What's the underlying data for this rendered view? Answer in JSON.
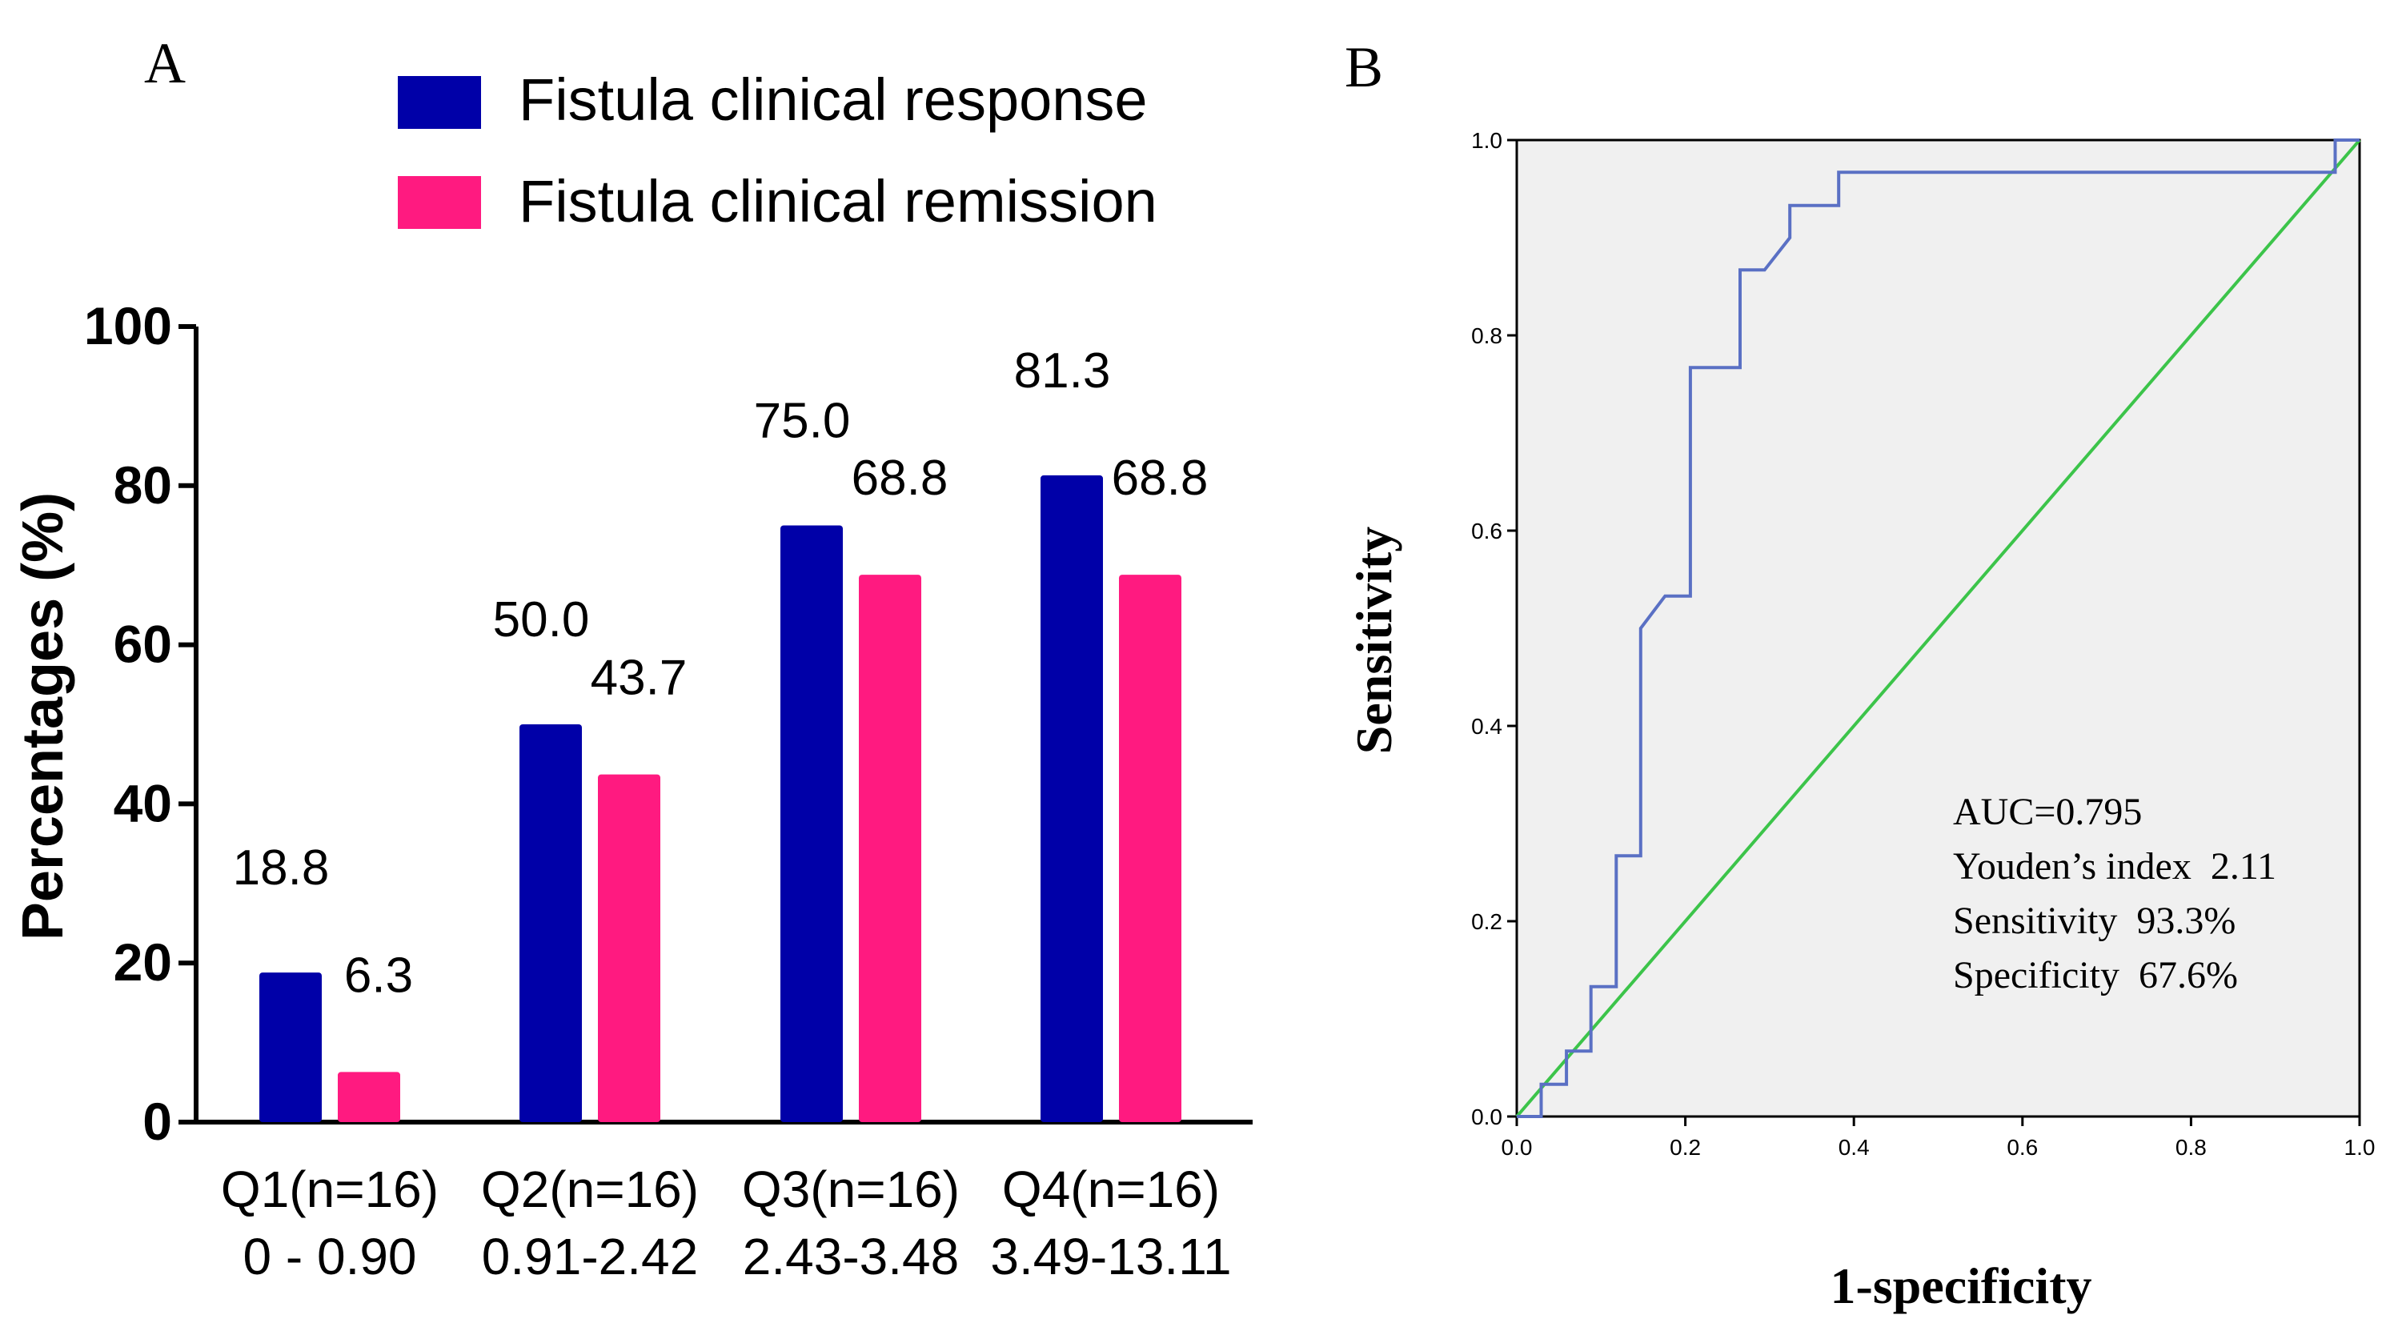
{
  "panel_a_label": "A",
  "panel_b_label": "B",
  "chart_data": [
    {
      "type": "bar",
      "panel": "A",
      "ylabel": "Percentages (%)",
      "xlabel": "",
      "ylim": [
        0,
        100
      ],
      "yticks": [
        0,
        20,
        40,
        60,
        80,
        100
      ],
      "categories": [
        "Q1(n=16)",
        "Q2(n=16)",
        "Q3(n=16)",
        "Q4(n=16)"
      ],
      "category_ranges": [
        "0 - 0.90",
        "0.91-2.42",
        "2.43-3.48",
        "3.49-13.11"
      ],
      "series": [
        {
          "name": "Fistula clinical response",
          "color": "#0000a8",
          "values": [
            18.8,
            50.0,
            75.0,
            81.3
          ],
          "labels": [
            "18.8",
            "50.0",
            "75.0",
            "81.3"
          ]
        },
        {
          "name": "Fistula clinical remission",
          "color": "#ff1a80",
          "values": [
            6.3,
            43.7,
            68.8,
            68.8
          ],
          "labels": [
            "6.3",
            "43.7",
            "68.8",
            "68.8"
          ]
        }
      ],
      "legend_position": "top"
    },
    {
      "type": "line",
      "panel": "B",
      "xlabel": "1-specificity",
      "ylabel": "Sensitivity",
      "xlim": [
        0,
        1
      ],
      "ylim": [
        0,
        1
      ],
      "xticks": [
        "0.0",
        "0.2",
        "0.4",
        "0.6",
        "0.8",
        "1.0"
      ],
      "yticks": [
        "0.0",
        "0.2",
        "0.4",
        "0.6",
        "0.8",
        "1.0"
      ],
      "grid": false,
      "series": [
        {
          "name": "ROC curve",
          "color": "#5a70c4",
          "x": [
            0.0,
            0.029,
            0.029,
            0.059,
            0.059,
            0.088,
            0.088,
            0.118,
            0.118,
            0.147,
            0.147,
            0.176,
            0.206,
            0.206,
            0.265,
            0.265,
            0.294,
            0.324,
            0.324,
            0.382,
            0.382,
            0.971,
            0.971,
            1.0
          ],
          "y": [
            0.0,
            0.0,
            0.033,
            0.033,
            0.067,
            0.067,
            0.133,
            0.133,
            0.267,
            0.267,
            0.5,
            0.533,
            0.533,
            0.767,
            0.767,
            0.867,
            0.867,
            0.9,
            0.933,
            0.933,
            0.967,
            0.967,
            1.0,
            1.0
          ]
        },
        {
          "name": "Reference line",
          "color": "#3cc44a",
          "x": [
            0,
            1
          ],
          "y": [
            0,
            1
          ]
        }
      ],
      "annotations": [
        "AUC=0.795",
        "Youden’s index  2.11",
        "Sensitivity  93.3%",
        "Specificity  67.6%"
      ]
    }
  ]
}
